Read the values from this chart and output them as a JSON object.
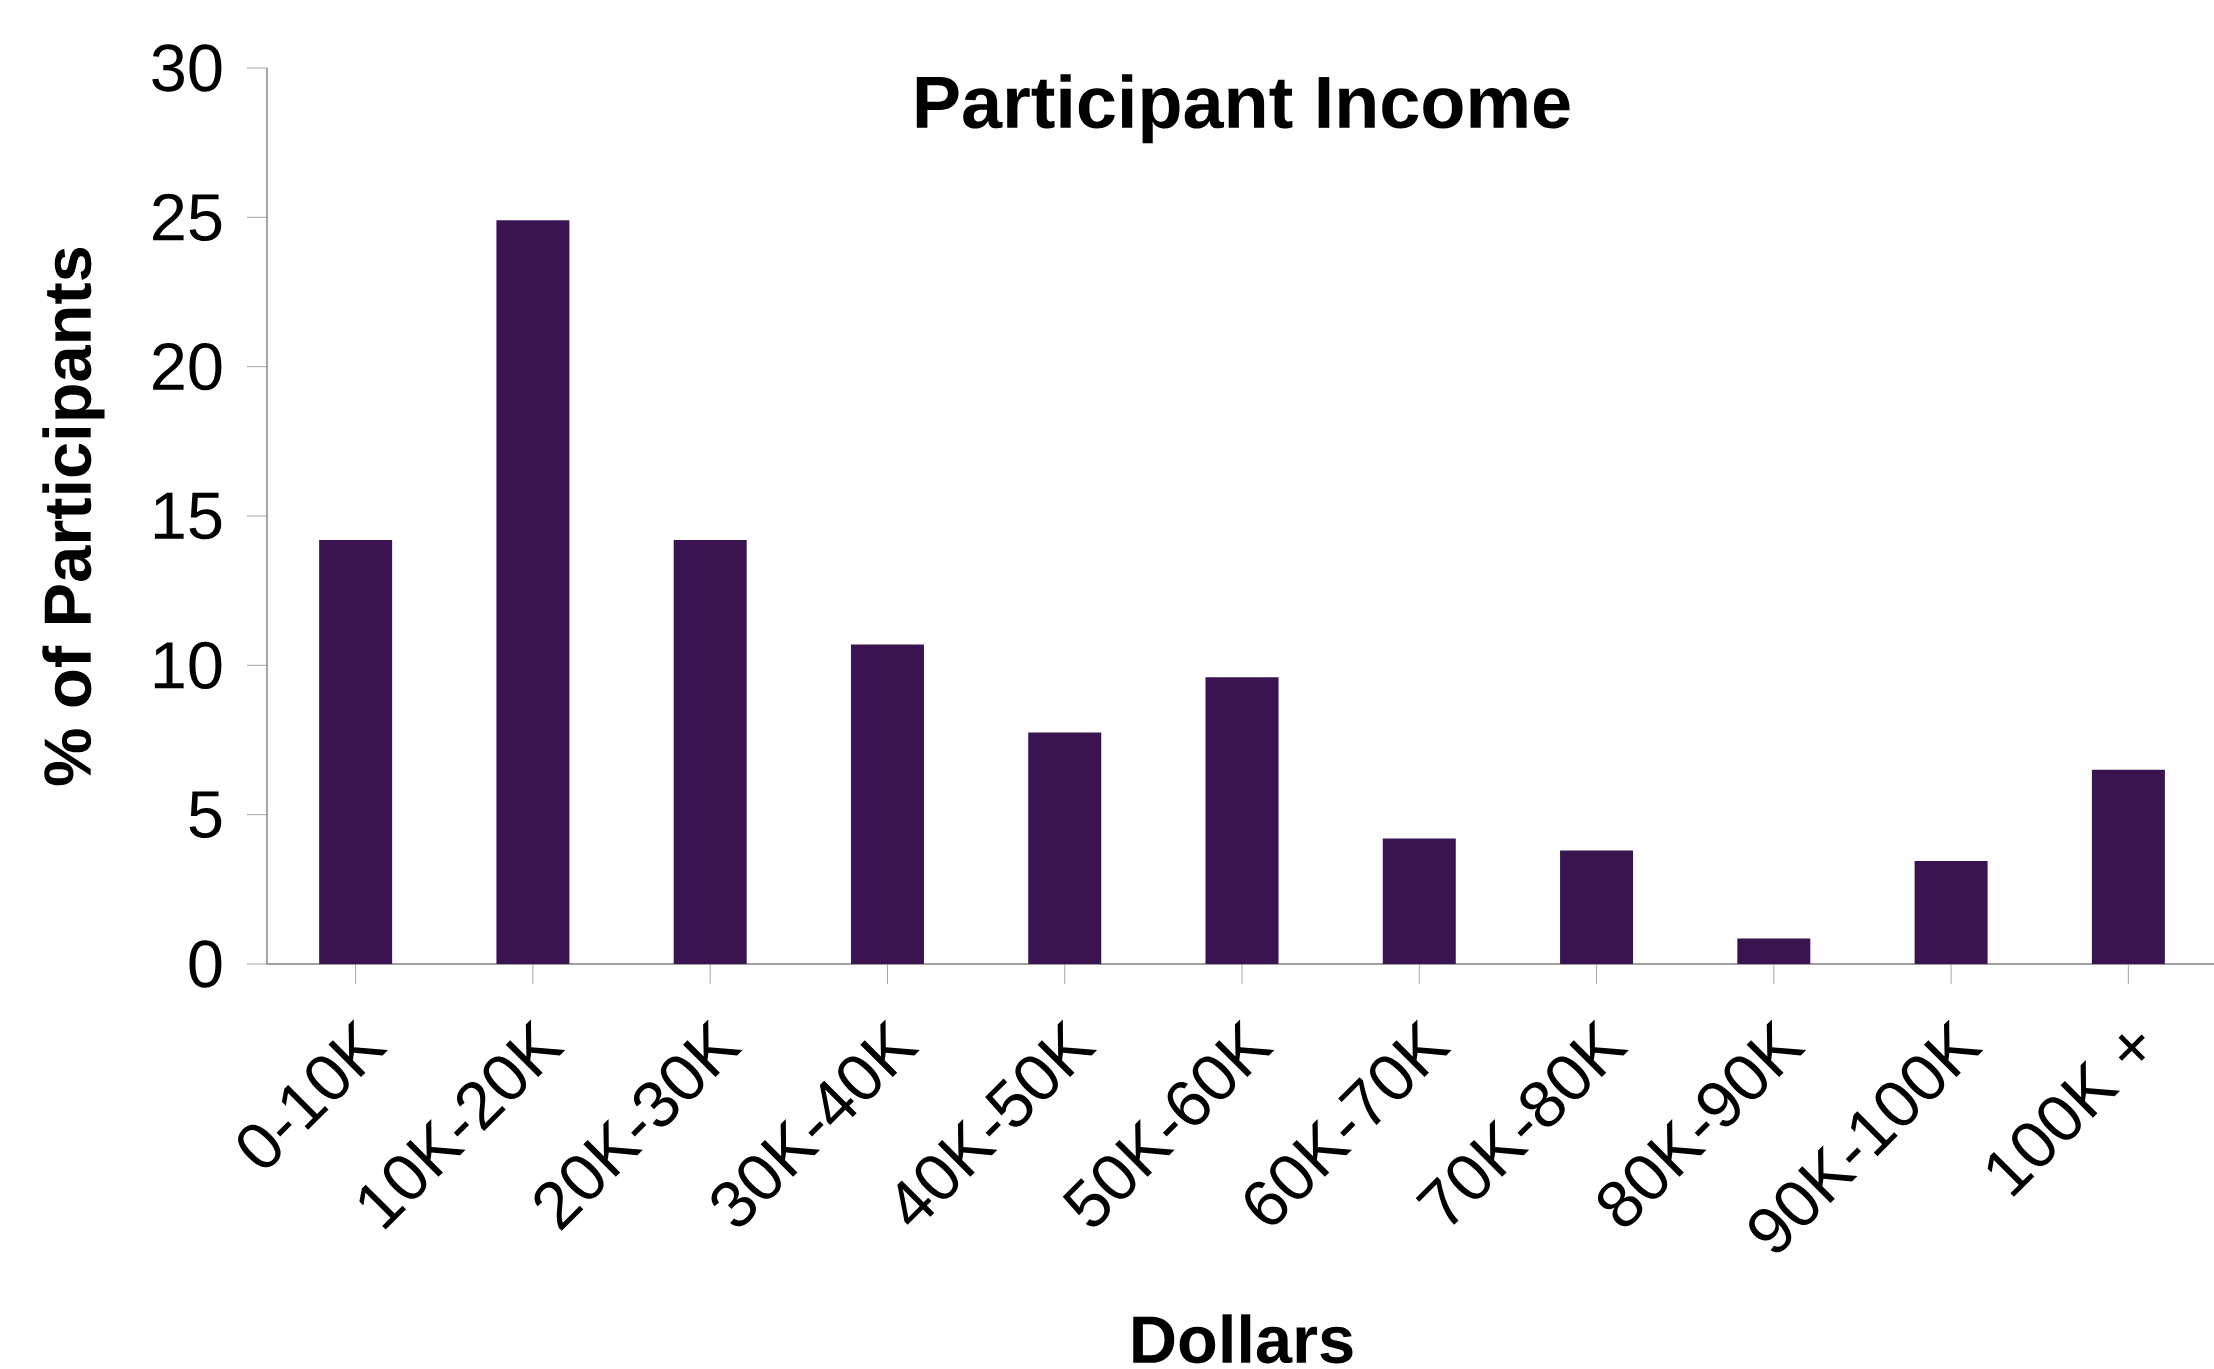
{
  "chart_data": {
    "type": "bar",
    "title": "Participant Income",
    "xlabel": "Dollars",
    "ylabel": "% of Participants",
    "categories": [
      "0-10K",
      "10K-20K",
      "20K-30K",
      "30K-40K",
      "40K-50K",
      "50K-60K",
      "60K-70K",
      "70K-80K",
      "80K-90K",
      "90K-100K",
      "100K +"
    ],
    "values": [
      14.2,
      24.9,
      14.2,
      10.7,
      7.75,
      9.6,
      4.2,
      3.8,
      0.85,
      3.45,
      6.5
    ],
    "color": "#3a1450",
    "ylim": [
      0,
      30
    ],
    "yticks": [
      0,
      5,
      10,
      15,
      20,
      25,
      30
    ],
    "grid": false
  }
}
